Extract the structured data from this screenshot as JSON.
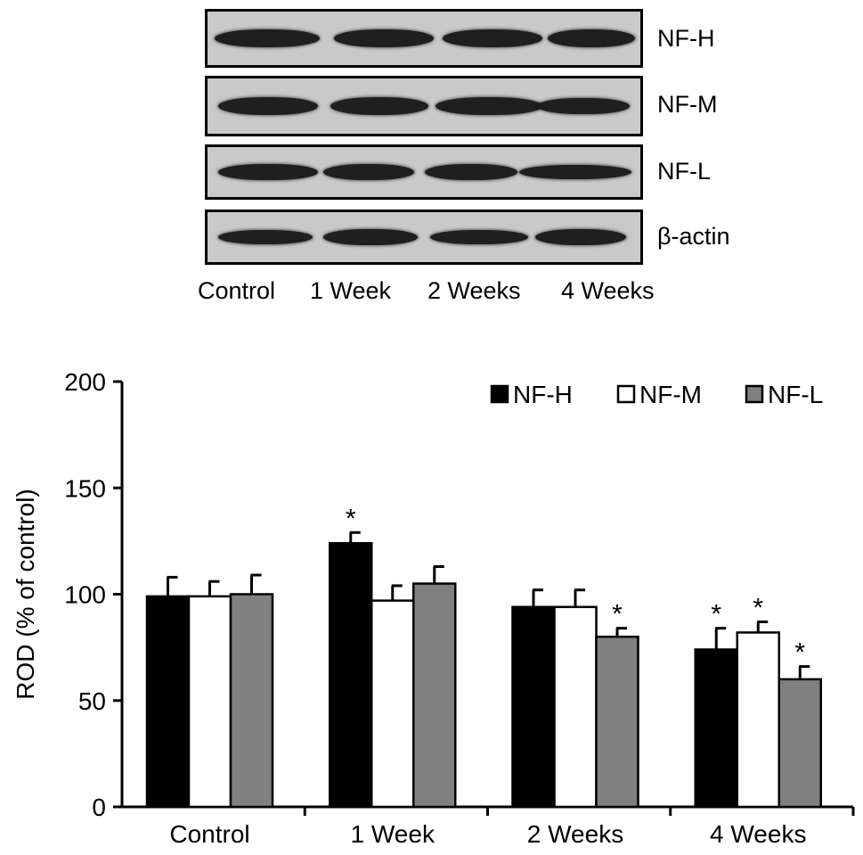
{
  "blot": {
    "lanes": [
      "Control",
      "1 Week",
      "2 Weeks",
      "4 Weeks"
    ],
    "rows": [
      {
        "label": "NF-H"
      },
      {
        "label": "NF-M"
      },
      {
        "label": "NF-L"
      },
      {
        "label": "β-actin"
      }
    ]
  },
  "chart_data": {
    "type": "bar",
    "title": "",
    "xlabel": "",
    "ylabel": "ROD (% of control)",
    "ylim": [
      0,
      200
    ],
    "yticks": [
      0,
      50,
      100,
      150,
      200
    ],
    "categories": [
      "Control",
      "1 Week",
      "2 Weeks",
      "4 Weeks"
    ],
    "grid": false,
    "legend_position": "top-right",
    "series": [
      {
        "name": "NF-H",
        "color": "#000000",
        "values": [
          99,
          124,
          94,
          74
        ],
        "errors": [
          9,
          5,
          8,
          10
        ],
        "significant": [
          false,
          true,
          false,
          true
        ]
      },
      {
        "name": "NF-M",
        "color": "#ffffff",
        "values": [
          99,
          97,
          94,
          82
        ],
        "errors": [
          7,
          7,
          8,
          5
        ],
        "significant": [
          false,
          false,
          false,
          true
        ]
      },
      {
        "name": "NF-L",
        "color": "#808080",
        "values": [
          100,
          105,
          80,
          60
        ],
        "errors": [
          9,
          8,
          4,
          6
        ],
        "significant": [
          false,
          false,
          true,
          true
        ]
      }
    ],
    "significance_marker": "*"
  }
}
